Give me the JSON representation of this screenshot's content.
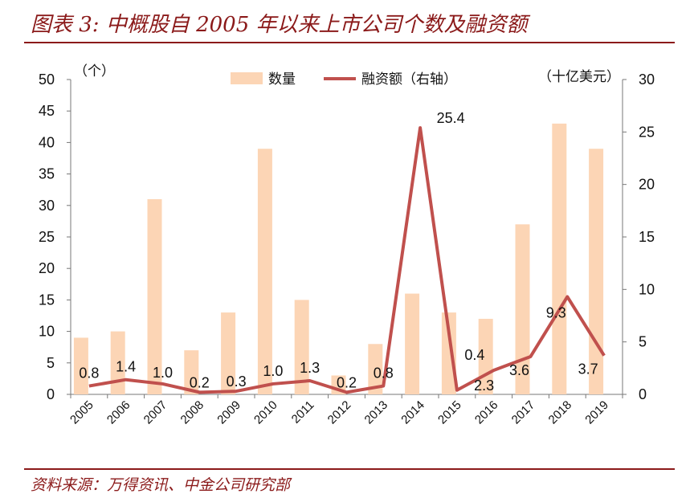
{
  "header": {
    "title": "图表 3:  中概股自 2005 年以来上市公司个数及融资额"
  },
  "footer": {
    "source": "资料来源：万得资讯、中金公司研究部"
  },
  "chart_data": {
    "type": "bar+line",
    "categories": [
      "2005",
      "2006",
      "2007",
      "2008",
      "2009",
      "2010",
      "2011",
      "2012",
      "2013",
      "2014",
      "2015",
      "2016",
      "2017",
      "2018",
      "2019"
    ],
    "series": [
      {
        "name": "数量",
        "type": "bar",
        "axis": "left",
        "values": [
          9,
          10,
          31,
          7,
          13,
          39,
          15,
          3,
          8,
          16,
          13,
          12,
          27,
          43,
          39
        ]
      },
      {
        "name": "融资额（右轴）",
        "type": "line",
        "axis": "right",
        "values": [
          0.8,
          1.4,
          1.0,
          0.2,
          0.3,
          1.0,
          1.3,
          0.2,
          0.8,
          25.4,
          0.4,
          2.3,
          3.6,
          9.3,
          3.7
        ],
        "labels": [
          "0.8",
          "1.4",
          "1.0",
          "0.2",
          "0.3",
          "1.0",
          "1.3",
          "0.2",
          "0.8",
          "25.4",
          "0.4",
          "2.3",
          "3.6",
          "9.3",
          "3.7"
        ]
      }
    ],
    "left_axis": {
      "unit": "（个）",
      "ylim": [
        0,
        50
      ],
      "ticks": [
        "0",
        "5",
        "10",
        "15",
        "20",
        "25",
        "30",
        "35",
        "40",
        "45",
        "50"
      ]
    },
    "right_axis": {
      "unit": "（十亿美元）",
      "ylim": [
        0,
        30
      ],
      "ticks": [
        "0",
        "5",
        "10",
        "15",
        "20",
        "25",
        "30"
      ]
    },
    "legend": {
      "position": "top-center"
    },
    "colors": {
      "bar": "#FCD5B5",
      "line": "#C0504D",
      "title": "#8B1A1A"
    }
  }
}
